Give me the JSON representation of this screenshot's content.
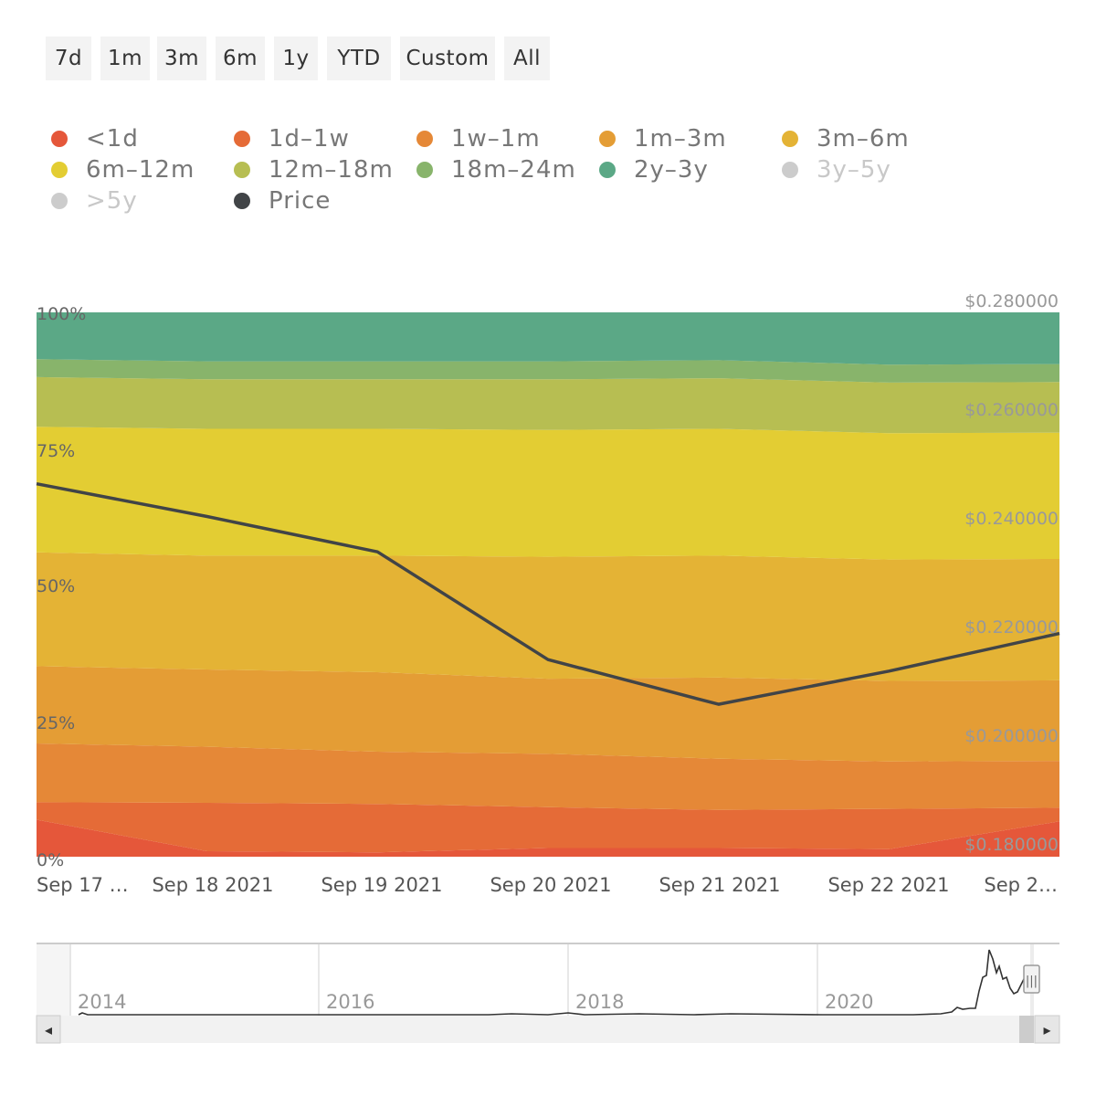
{
  "range_buttons": [
    "7d",
    "1m",
    "3m",
    "6m",
    "1y",
    "YTD",
    "Custom",
    "All"
  ],
  "colors": {
    "lt1d": "#e5573a",
    "d1w1": "#e56b37",
    "w1m1": "#e58837",
    "m1m3": "#e49d35",
    "m3m6": "#e4b335",
    "m6m12": "#e3cd33",
    "m12m18": "#b7be52",
    "m18m24": "#88b46b",
    "y2y3": "#5ba886",
    "y3y5": "#cccccc",
    "gt5y": "#cccccc",
    "price": "#414447"
  },
  "legend": [
    {
      "label": "<1d",
      "color": "#e5573a",
      "visible": true
    },
    {
      "label": "1d–1w",
      "color": "#e56b37",
      "visible": true
    },
    {
      "label": "1w–1m",
      "color": "#e58837",
      "visible": true
    },
    {
      "label": "1m–3m",
      "color": "#e49d35",
      "visible": true
    },
    {
      "label": "3m–6m",
      "color": "#e4b335",
      "visible": true
    },
    {
      "label": "6m–12m",
      "color": "#e3cd33",
      "visible": true
    },
    {
      "label": "12m–18m",
      "color": "#b7be52",
      "visible": true
    },
    {
      "label": "18m–24m",
      "color": "#88b46b",
      "visible": true
    },
    {
      "label": "2y–3y",
      "color": "#5ba886",
      "visible": true
    },
    {
      "label": "3y–5y",
      "color": "#cccccc",
      "visible": false
    },
    {
      "label": ">5y",
      "color": "#cccccc",
      "visible": false
    },
    {
      "label": "Price",
      "color": "#414447",
      "visible": true
    }
  ],
  "chart_data": {
    "type": "area",
    "stacking": "percent",
    "x": [
      "2021-09-17",
      "2021-09-18",
      "2021-09-19",
      "2021-09-20",
      "2021-09-21",
      "2021-09-22",
      "2021-09-23"
    ],
    "x_tick_labels": [
      "Sep 17 …",
      "Sep 18 2021",
      "Sep 19 2021",
      "Sep 20 2021",
      "Sep 21 2021",
      "Sep 22 2021",
      "Sep 2…"
    ],
    "y_left": {
      "ticks": [
        "0%",
        "25%",
        "50%",
        "75%",
        "100%"
      ],
      "range": [
        0,
        100
      ]
    },
    "y_right": {
      "ticks": [
        "$0.180000",
        "$0.200000",
        "$0.220000",
        "$0.240000",
        "$0.260000",
        "$0.280000"
      ],
      "range": [
        0.18,
        0.28
      ]
    },
    "series": [
      {
        "name": "<1d",
        "values": [
          6.8,
          1.0,
          0.8,
          1.6,
          1.6,
          1.4,
          6.5
        ]
      },
      {
        "name": "1d–1w",
        "values": [
          3.2,
          8.9,
          8.9,
          7.5,
          7.0,
          7.4,
          2.5
        ]
      },
      {
        "name": "1w–1m",
        "values": [
          10.8,
          10.3,
          9.6,
          9.8,
          9.4,
          8.7,
          8.6
        ]
      },
      {
        "name": "1m–3m",
        "values": [
          14.2,
          14.2,
          14.6,
          13.8,
          14.9,
          14.8,
          14.8
        ]
      },
      {
        "name": "3m–6m",
        "values": [
          20.9,
          20.9,
          21.4,
          22.4,
          22.4,
          22.3,
          22.3
        ]
      },
      {
        "name": "6m–12m",
        "values": [
          23.1,
          23.3,
          23.3,
          23.3,
          23.3,
          23.2,
          23.2
        ]
      },
      {
        "name": "12m–18m",
        "values": [
          9.1,
          9.1,
          9.1,
          9.3,
          9.3,
          9.3,
          9.3
        ]
      },
      {
        "name": "18m–24m",
        "values": [
          3.3,
          3.3,
          3.3,
          3.3,
          3.3,
          3.3,
          3.3
        ]
      },
      {
        "name": "2y–3y",
        "values": [
          8.6,
          9.0,
          9.0,
          9.0,
          8.8,
          9.6,
          9.5
        ]
      }
    ],
    "price": {
      "name": "Price",
      "values": [
        0.2485,
        0.2425,
        0.236,
        0.2162,
        0.208,
        0.2141,
        0.221
      ]
    },
    "legend_position": "top",
    "grid": false
  },
  "navigator": {
    "year_labels": [
      "2014",
      "2016",
      "2018",
      "2020"
    ],
    "scroll_left": "◂",
    "scroll_right": "▸",
    "handle": "|||"
  }
}
